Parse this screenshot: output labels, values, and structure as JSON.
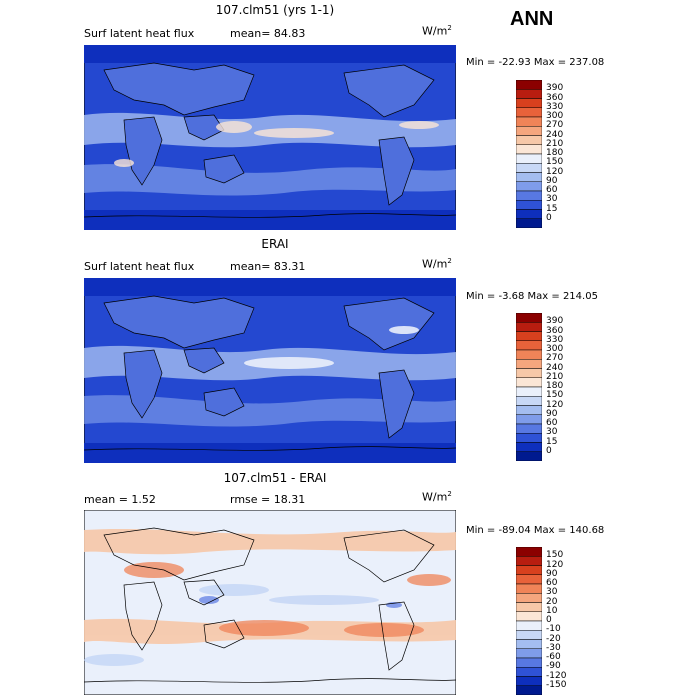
{
  "season": "ANN",
  "panels": [
    {
      "title": "107.clm51 (yrs 1-1)",
      "left_label": "Surf latent heat flux",
      "mean_text": "mean=  84.83",
      "units": "W/m",
      "units_sup": "2",
      "stats_text": "Min = -22.93 Max = 237.08",
      "type": "abs"
    },
    {
      "title": "ERAI",
      "left_label": "Surf latent heat flux",
      "mean_text": "mean=  83.31",
      "units": "W/m",
      "units_sup": "2",
      "stats_text": "Min =  -3.68 Max = 214.05",
      "type": "abs"
    },
    {
      "title": "107.clm51 - ERAI",
      "left_label": "mean =    1.52",
      "mean_text": "rmse =  18.31",
      "units": "W/m",
      "units_sup": "2",
      "stats_text": "Min = -89.04 Max = 140.68",
      "type": "diff"
    }
  ],
  "colorbars": {
    "abs": {
      "labels": [
        "390",
        "360",
        "330",
        "300",
        "270",
        "240",
        "210",
        "180",
        "150",
        "120",
        "90",
        "60",
        "30",
        "15",
        "0"
      ],
      "colors": [
        "#8b0000",
        "#b81d10",
        "#d8401e",
        "#e8623a",
        "#f08458",
        "#f5a67e",
        "#f7c8a8",
        "#fbe6d6",
        "#eaf0fb",
        "#c8d8f6",
        "#a4bdf0",
        "#7f9cea",
        "#5878e2",
        "#2f52d6",
        "#0e2fbd",
        "#001a8f"
      ]
    },
    "diff": {
      "labels": [
        "150",
        "120",
        "90",
        "60",
        "30",
        "20",
        "10",
        "0",
        "-10",
        "-20",
        "-30",
        "-60",
        "-90",
        "-120",
        "-150"
      ],
      "colors": [
        "#8b0000",
        "#b81d10",
        "#d8401e",
        "#e8623a",
        "#f08458",
        "#f5a67e",
        "#f7c8a8",
        "#fbe6d6",
        "#eaf0fb",
        "#c8d8f6",
        "#a4bdf0",
        "#7f9cea",
        "#5878e2",
        "#2f52d6",
        "#0e2fbd",
        "#001a8f"
      ]
    }
  }
}
